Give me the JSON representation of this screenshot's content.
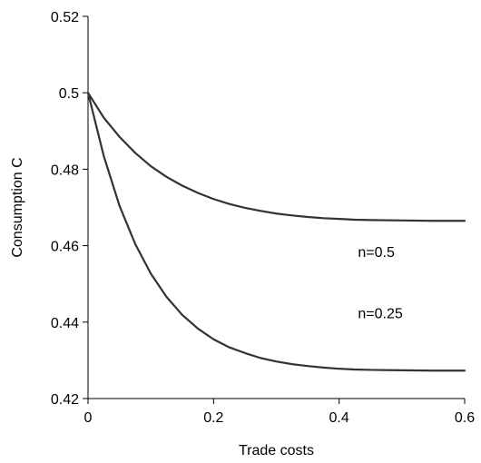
{
  "chart_data": {
    "type": "line",
    "title": "",
    "xlabel": "Trade costs",
    "ylabel": "Consumption C",
    "xlim": [
      0,
      0.6
    ],
    "ylim": [
      0.42,
      0.52
    ],
    "xticks": [
      0,
      0.2,
      0.4,
      0.6
    ],
    "xtick_labels": [
      "0",
      "0.2",
      "0.4",
      "0.6"
    ],
    "yticks": [
      0.42,
      0.44,
      0.46,
      0.48,
      0.5,
      0.52
    ],
    "ytick_labels": [
      "0.42",
      "0.44",
      "0.46",
      "0.48",
      "0.5",
      "0.52"
    ],
    "grid": false,
    "legend": "none",
    "series": [
      {
        "label": "n=0.5",
        "color": "#333333",
        "x": [
          0,
          0.025,
          0.05,
          0.075,
          0.1,
          0.125,
          0.15,
          0.175,
          0.2,
          0.225,
          0.25,
          0.275,
          0.3,
          0.325,
          0.35,
          0.375,
          0.4,
          0.425,
          0.45,
          0.5,
          0.55,
          0.6
        ],
        "y": [
          0.5,
          0.4935,
          0.4885,
          0.4843,
          0.4808,
          0.478,
          0.4757,
          0.4738,
          0.4722,
          0.4709,
          0.4699,
          0.4691,
          0.4684,
          0.4679,
          0.4675,
          0.4672,
          0.467,
          0.4668,
          0.4667,
          0.4666,
          0.4665,
          0.4665
        ]
      },
      {
        "label": "n=0.25",
        "color": "#333333",
        "x": [
          0,
          0.025,
          0.05,
          0.075,
          0.1,
          0.125,
          0.15,
          0.175,
          0.2,
          0.225,
          0.25,
          0.275,
          0.3,
          0.325,
          0.35,
          0.375,
          0.4,
          0.425,
          0.45,
          0.5,
          0.55,
          0.6
        ],
        "y": [
          0.5,
          0.4835,
          0.4705,
          0.4605,
          0.4527,
          0.4466,
          0.4419,
          0.4383,
          0.4355,
          0.4334,
          0.4319,
          0.4306,
          0.4297,
          0.429,
          0.4285,
          0.4281,
          0.4278,
          0.4276,
          0.4275,
          0.4274,
          0.4273,
          0.4273
        ]
      }
    ],
    "annotations": [
      {
        "text": "n=0.5",
        "x": 0.43,
        "y": 0.4585
      },
      {
        "text": "n=0.25",
        "x": 0.43,
        "y": 0.4425
      }
    ]
  }
}
